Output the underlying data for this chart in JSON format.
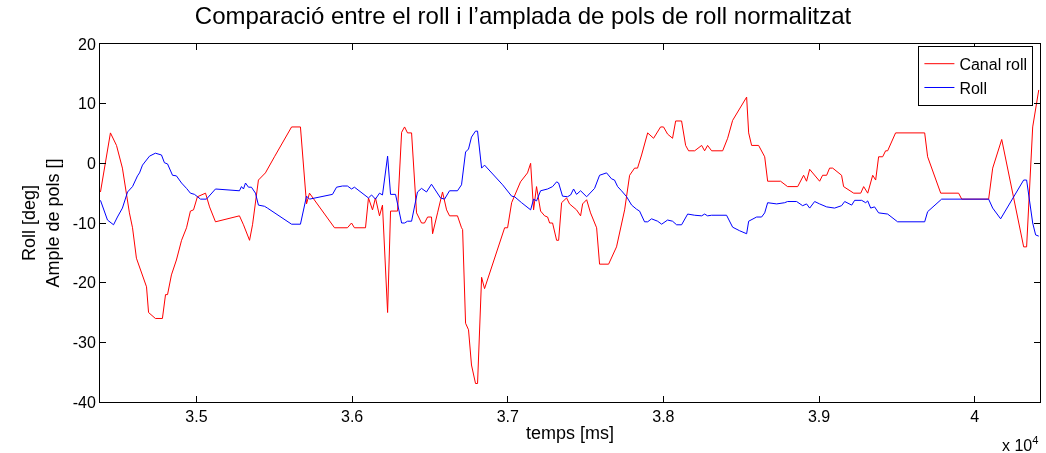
{
  "chart_data": {
    "type": "line",
    "title": "Comparació entre el roll i l’amplada de pols de roll normalitzat",
    "xlabel": "temps [ms]",
    "ylabel": "Roll [deg]\nAmple de pols []",
    "annotations": [
      "x 10$^{4}$"
    ],
    "xlim": [
      3.438,
      4.042
    ],
    "ylim": [
      -40,
      20
    ],
    "xticks": [
      3.5,
      3.6,
      3.7,
      3.8,
      3.9,
      4
    ],
    "yticks": [
      -40,
      -30,
      -20,
      -10,
      0,
      10,
      20
    ],
    "legend": "top right",
    "marker": "none",
    "line_style": "solid",
    "series": [
      {
        "name": "Canal roll",
        "color": "#ff0000",
        "x": [
          3.4383,
          3.4447,
          3.4486,
          3.4524,
          3.4569,
          3.4589,
          3.4614,
          3.4679,
          3.4692,
          3.4736,
          3.4781,
          3.4801,
          3.4814,
          3.4839,
          3.4871,
          3.4904,
          3.4936,
          3.4961,
          3.4981,
          3.5006,
          3.5058,
          3.5084,
          3.5122,
          3.5276,
          3.5302,
          3.5341,
          3.536,
          3.5398,
          3.5443,
          3.5501,
          3.5611,
          3.5668,
          3.5707,
          3.5726,
          3.5887,
          3.597,
          3.5996,
          3.6015,
          3.6086,
          3.6105,
          3.6131,
          3.615,
          3.6176,
          3.6195,
          3.6228,
          3.6247,
          3.6292,
          3.6318,
          3.6337,
          3.6356,
          3.6382,
          3.6414,
          3.6446,
          3.6465,
          3.6485,
          3.651,
          3.6517,
          3.6549,
          3.6581,
          3.6607,
          3.6626,
          3.6677,
          3.6703,
          3.671,
          3.6729,
          3.6748,
          3.6767,
          3.6793,
          3.6806,
          3.6832,
          3.6851,
          3.698,
          3.6999,
          3.7025,
          3.7082,
          3.7127,
          3.7147,
          3.7166,
          3.7185,
          3.7211,
          3.7237,
          3.7256,
          3.7269,
          3.7288,
          3.7314,
          3.7327,
          3.7346,
          3.7378,
          3.7397,
          3.7442,
          3.7468,
          3.7481,
          3.7507,
          3.7532,
          3.7571,
          3.759,
          3.7648,
          3.7699,
          3.7751,
          3.7783,
          3.7815,
          3.7834,
          3.786,
          3.7899,
          3.7937,
          3.7982,
          3.8001,
          3.8027,
          3.8059,
          3.8079,
          3.8117,
          3.8143,
          3.8162,
          3.8201,
          3.8246,
          3.8265,
          3.8284,
          3.831,
          3.8381,
          3.8413,
          3.8445,
          3.8535,
          3.8548,
          3.8567,
          3.8612,
          3.8651,
          3.867,
          3.8753,
          3.8798,
          3.8863,
          3.8901,
          3.892,
          3.894,
          3.9004,
          3.9023,
          3.9049,
          3.9068,
          3.9088,
          3.9145,
          3.9158,
          3.9223,
          3.9268,
          3.9287,
          3.9313,
          3.9345,
          3.9364,
          3.9383,
          3.9409,
          3.9428,
          3.9441,
          3.9492,
          3.9679,
          3.9698,
          3.9782,
          3.9897,
          3.9917,
          4.009,
          4.0116,
          4.0174,
          4.0315,
          4.0334,
          4.0373,
          4.0412
        ],
        "values": [
          -4.8,
          5.1,
          3.0,
          -0.8,
          -8.3,
          -10.8,
          -15.9,
          -20.7,
          -25,
          -26,
          -26,
          -22,
          -22,
          -18.7,
          -16.2,
          -12.9,
          -10.8,
          -8.0,
          -7.8,
          -5.6,
          -5.0,
          -7.3,
          -9.8,
          -8.8,
          -10.3,
          -12.9,
          -10.3,
          -2.8,
          -1.6,
          1.1,
          6.1,
          6.1,
          -6.8,
          -5.0,
          -10.8,
          -10.8,
          -10.0,
          -10.8,
          -10.8,
          -5.8,
          -7.8,
          -5.8,
          -8.8,
          -7.0,
          -25,
          -8.0,
          -8.0,
          5.2,
          6.1,
          5.1,
          5.1,
          -8.3,
          -10.0,
          -10.0,
          -9.0,
          -9.0,
          -11.8,
          -8.3,
          -4.8,
          -7.8,
          -8.8,
          -8.8,
          -10.8,
          -11.1,
          -26.8,
          -27.9,
          -33.8,
          -36.9,
          -36.9,
          -19.1,
          -21,
          -10.8,
          -10.8,
          -6.6,
          -3.1,
          -1.6,
          0,
          -7.8,
          -3.9,
          -8.0,
          -8.8,
          -9.0,
          -10.0,
          -10.0,
          -12.9,
          -12.9,
          -6.6,
          -5.8,
          -6.8,
          -7.8,
          -8.8,
          -6.8,
          -6.1,
          -8.3,
          -10.8,
          -16.9,
          -16.9,
          -14.0,
          -7.8,
          -2.0,
          -0.8,
          -0.8,
          1.4,
          5.1,
          4.2,
          6.1,
          6.1,
          4.9,
          4.2,
          7.1,
          7.1,
          3.0,
          2.1,
          2.1,
          3.0,
          2.1,
          3.0,
          2.1,
          2.1,
          4.2,
          7.2,
          11.1,
          5.1,
          3.0,
          3.0,
          1.1,
          -3.0,
          -3.0,
          -3.9,
          -3.9,
          -2.0,
          -3.0,
          -1.0,
          -3.0,
          -2.0,
          -2.0,
          -0.8,
          -0.8,
          -2.0,
          -3.9,
          -5.0,
          -5.0,
          -3.9,
          -5.0,
          -2.0,
          -2.8,
          1.1,
          1.1,
          2.1,
          2.1,
          5.1,
          5.1,
          1.1,
          -5.0,
          -5.0,
          -6.0,
          -6.0,
          -0.8,
          4.0,
          -14.0,
          -14.0,
          6.1,
          12.3
        ]
      },
      {
        "name": "Roll",
        "color": "#0000ff",
        "x": [
          3.4383,
          3.4428,
          3.4467,
          3.4492,
          3.4524,
          3.4557,
          3.4589,
          3.4621,
          3.4634,
          3.4653,
          3.4698,
          3.4736,
          3.4775,
          3.4794,
          3.4814,
          3.4846,
          3.4871,
          3.4904,
          3.4936,
          3.4961,
          3.4987,
          3.5026,
          3.5064,
          3.5122,
          3.5276,
          3.5289,
          3.5302,
          3.5315,
          3.5334,
          3.5353,
          3.5379,
          3.5398,
          3.5437,
          3.5456,
          3.5611,
          3.5668,
          3.5707,
          3.5726,
          3.5874,
          3.59,
          3.5938,
          3.597,
          3.5996,
          3.6015,
          3.6105,
          3.6125,
          3.615,
          3.6176,
          3.6195,
          3.6228,
          3.6247,
          3.6279,
          3.6318,
          3.6337,
          3.6356,
          3.6382,
          3.642,
          3.6446,
          3.6478,
          3.651,
          3.6568,
          3.6594,
          3.6626,
          3.6677,
          3.6703,
          3.6729,
          3.6748,
          3.6767,
          3.6793,
          3.6806,
          3.6832,
          3.6851,
          3.6967,
          3.7025,
          3.7044,
          3.7089,
          3.7147,
          3.7166,
          3.7185,
          3.7211,
          3.7256,
          3.7288,
          3.7314,
          3.7327,
          3.7352,
          3.7384,
          3.7404,
          3.7423,
          3.7442,
          3.7468,
          3.7507,
          3.7558,
          3.759,
          3.7635,
          3.7667,
          3.7686,
          3.7706,
          3.7731,
          3.7764,
          3.7796,
          3.7828,
          3.7847,
          3.7879,
          3.7899,
          3.7924,
          3.7963,
          3.7989,
          3.8027,
          3.8059,
          3.8085,
          3.8117,
          3.8156,
          3.8201,
          3.8246,
          3.8265,
          3.8284,
          3.831,
          3.8406,
          3.8445,
          3.849,
          3.8535,
          3.8548,
          3.8599,
          3.8631,
          3.8651,
          3.867,
          3.8728,
          3.8779,
          3.8798,
          3.8856,
          3.8895,
          3.892,
          3.894,
          3.8972,
          3.9004,
          3.9049,
          3.91,
          3.9145,
          3.9165,
          3.921,
          3.9229,
          3.9274,
          3.93,
          3.9313,
          3.9332,
          3.9357,
          3.9383,
          3.9441,
          3.9505,
          3.9679,
          3.9698,
          3.9788,
          4.009,
          4.0116,
          4.0167,
          4.0315,
          4.0334,
          4.0373,
          4.0392,
          4.0412
        ],
        "values": [
          -6.2,
          -9.5,
          -10.3,
          -9.0,
          -7.5,
          -4.8,
          -3.9,
          -2.1,
          -1.6,
          -0.3,
          1.2,
          1.7,
          1.4,
          0.1,
          -0.1,
          -2.0,
          -2.1,
          -3.3,
          -4.2,
          -5.0,
          -5.2,
          -6.0,
          -6.0,
          -4.3,
          -4.6,
          -3.9,
          -4.3,
          -3.3,
          -4.0,
          -4.0,
          -5.0,
          -7.0,
          -7.2,
          -7.5,
          -10.2,
          -10.2,
          -5.5,
          -6.0,
          -5.2,
          -4.0,
          -3.8,
          -3.8,
          -4.3,
          -4.0,
          -5.8,
          -5.3,
          -6.0,
          -5.0,
          -5.3,
          1.2,
          -5.2,
          -5.2,
          -10.0,
          -10.0,
          -9.7,
          -9.7,
          -4.8,
          -4.2,
          -4.8,
          -3.5,
          -5.8,
          -6.0,
          -4.6,
          -4.6,
          -3.6,
          1.9,
          2.4,
          4.4,
          5.4,
          5.4,
          -0.8,
          -0.3,
          -3.6,
          -5.5,
          -5.6,
          -6.6,
          -7.8,
          -6.0,
          -6.3,
          -4.6,
          -4.3,
          -3.9,
          -3.1,
          -3.3,
          -5.5,
          -5.6,
          -5.3,
          -4.3,
          -5.2,
          -4.6,
          -5.6,
          -4.2,
          -2.0,
          -1.6,
          -2.6,
          -2.8,
          -3.9,
          -4.6,
          -5.6,
          -7.0,
          -7.7,
          -8.0,
          -9.8,
          -9.8,
          -9.3,
          -9.7,
          -10.2,
          -9.5,
          -9.7,
          -10.3,
          -10.3,
          -8.5,
          -8.7,
          -8.8,
          -8.5,
          -8.8,
          -8.7,
          -8.7,
          -10.7,
          -11.3,
          -11.8,
          -9.7,
          -9.0,
          -9.0,
          -8.3,
          -6.6,
          -6.8,
          -6.6,
          -6.4,
          -6.4,
          -7.1,
          -6.8,
          -7.5,
          -6.4,
          -6.8,
          -7.3,
          -7.5,
          -7.1,
          -6.4,
          -7.0,
          -6.2,
          -6.2,
          -6.6,
          -6.3,
          -7.5,
          -7.3,
          -8.3,
          -8.5,
          -9.8,
          -9.8,
          -8.1,
          -6.0,
          -6.0,
          -7.5,
          -9.3,
          -2.8,
          -2.8,
          -10.0,
          -12.0,
          -12.2
        ]
      }
    ]
  }
}
